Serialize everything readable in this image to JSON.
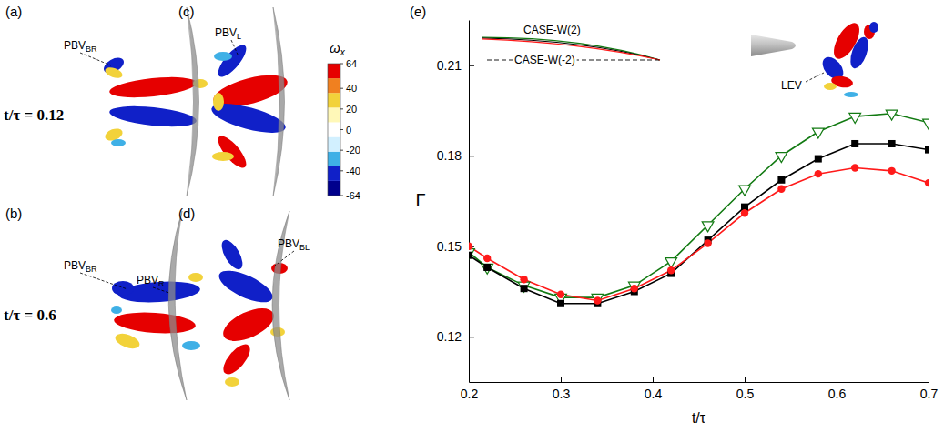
{
  "chart_data": {
    "type": "line",
    "panel_label": "(e)",
    "x": [
      0.2,
      0.22,
      0.26,
      0.3,
      0.34,
      0.38,
      0.42,
      0.46,
      0.5,
      0.54,
      0.58,
      0.62,
      0.66,
      0.7
    ],
    "series": [
      {
        "color": "#127a12",
        "marker": "open-triangle-down",
        "line_style": "solid",
        "values": [
          0.148,
          0.143,
          0.137,
          0.133,
          0.133,
          0.137,
          0.145,
          0.157,
          0.169,
          0.18,
          0.188,
          0.193,
          0.194,
          0.191
        ]
      },
      {
        "color": "#000000",
        "marker": "square",
        "line_style": "solid",
        "values": [
          0.147,
          0.143,
          0.136,
          0.131,
          0.131,
          0.135,
          0.141,
          0.152,
          0.163,
          0.172,
          0.179,
          0.184,
          0.184,
          0.182
        ]
      },
      {
        "color": "#ff1a1a",
        "marker": "circle",
        "line_style": "solid",
        "values": [
          0.15,
          0.146,
          0.139,
          0.134,
          0.132,
          0.136,
          0.142,
          0.151,
          0.161,
          0.169,
          0.174,
          0.176,
          0.175,
          0.171
        ]
      }
    ],
    "xlim": [
      0.2,
      0.7
    ],
    "xticks": [
      0.2,
      0.3,
      0.4,
      0.5,
      0.6,
      0.7
    ],
    "ylim": [
      0.105,
      0.225
    ],
    "yticks": [
      0.12,
      0.15,
      0.18,
      0.21
    ],
    "x_label": "t/τ",
    "y_label": "Γ",
    "annotations": [
      "CASE-W(2)",
      "CASE-W(-2)",
      "LEV"
    ]
  },
  "vorticity_panels": {
    "panels": [
      {
        "label": "(a)",
        "annotations": [
          {
            "text": "PBV",
            "sub": "BR"
          }
        ]
      },
      {
        "label": "(b)",
        "annotations": [
          {
            "text": "PBV",
            "sub": "BR"
          },
          {
            "text": "PBV",
            "sub": "R"
          }
        ]
      },
      {
        "label": "(c)",
        "annotations": [
          {
            "text": "PBV",
            "sub": "L"
          }
        ]
      },
      {
        "label": "(d)",
        "annotations": [
          {
            "text": "PBV",
            "sub": "BL"
          }
        ]
      }
    ],
    "time_labels": [
      "t/τ = 0.12",
      "t/τ = 0.6"
    ],
    "colorbar": {
      "title": "ω",
      "title_sub": "x",
      "range": [
        -64,
        64
      ],
      "ticks": [
        64,
        40,
        20,
        0,
        -20,
        -40,
        -64
      ]
    }
  }
}
